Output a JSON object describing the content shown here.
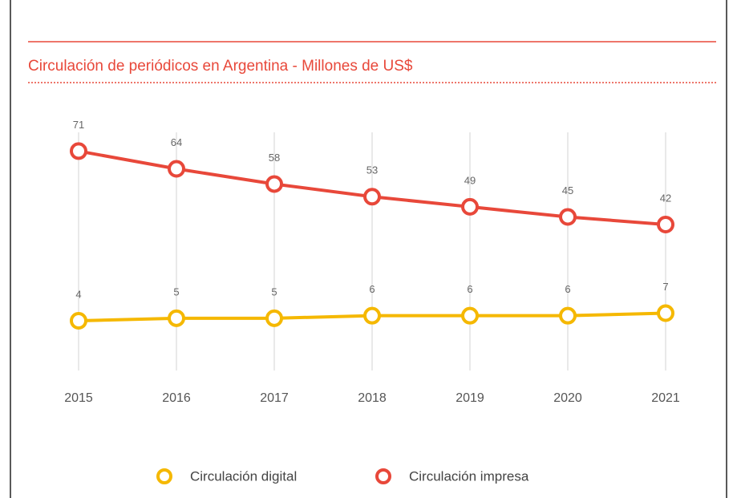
{
  "chart_data": {
    "type": "line",
    "title": "Circulación de periódicos en Argentina - Millones de US$",
    "categories": [
      "2015",
      "2016",
      "2017",
      "2018",
      "2019",
      "2020",
      "2021"
    ],
    "series": [
      {
        "name": "Circulación digital",
        "color": "#f5b800",
        "values": [
          4,
          5,
          5,
          6,
          6,
          6,
          7
        ]
      },
      {
        "name": "Circulación impresa",
        "color": "#e8483a",
        "values": [
          71,
          64,
          58,
          53,
          49,
          45,
          42
        ]
      }
    ],
    "ylim": [
      -15,
      80
    ],
    "legend": "bottom"
  }
}
